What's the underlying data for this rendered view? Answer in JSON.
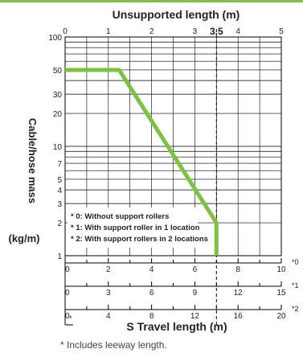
{
  "colors": {
    "accent": "#7cc242",
    "axis": "#000000",
    "text": "#222222",
    "footnote": "#444444"
  },
  "chart_data": {
    "type": "line",
    "top_axis": {
      "label": "Unsupported length (m)",
      "range": [
        0,
        5
      ],
      "ticks": [
        "0",
        "1",
        "2",
        "3",
        "4",
        "5"
      ],
      "marker_value": 3.5,
      "marker_label": "3.5"
    },
    "y_axis": {
      "label_line1": "Cable/hose mass",
      "label_line2": "(kg/m)",
      "scale": "log",
      "range": [
        1,
        100
      ],
      "ticks": [
        "1",
        "2",
        "3",
        "4",
        "5",
        "7",
        "10",
        "20",
        "30",
        "50",
        "100"
      ]
    },
    "bottom_axis": {
      "label": "S Travel length (m)",
      "scales": [
        {
          "max": 10,
          "ticks": [
            "0",
            "2",
            "4",
            "6",
            "8",
            "10"
          ],
          "suffix": "*0"
        },
        {
          "max": 15,
          "ticks": [
            "0",
            "3",
            "6",
            "9",
            "12",
            "15"
          ],
          "suffix": "*1"
        },
        {
          "max": 20,
          "ticks": [
            "0",
            "4",
            "8",
            "12",
            "16",
            "20"
          ],
          "suffix": "*2"
        }
      ],
      "footnote_marker": "*"
    },
    "series": [
      {
        "points": [
          {
            "x": 0,
            "y": 50
          },
          {
            "x": 1.25,
            "y": 50
          },
          {
            "x": 3.5,
            "y": 2
          },
          {
            "x": 3.5,
            "y": 1
          }
        ]
      }
    ],
    "legend": {
      "placement": "bottom-left",
      "items": [
        "* 0: Without support rollers",
        "* 1: With support roller in 1 location",
        "* 2: With support rollers in 2 locations"
      ]
    },
    "grid": true
  },
  "footnote": "* Includes leeway length."
}
